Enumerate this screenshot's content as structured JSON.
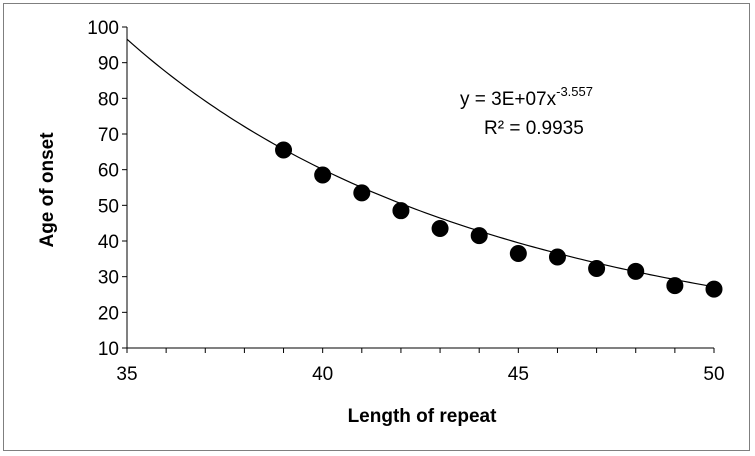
{
  "chart_data": {
    "type": "scatter",
    "title": "",
    "xlabel": "Length of repeat",
    "ylabel": "Age of onset",
    "xlim": [
      35,
      50
    ],
    "ylim": [
      10,
      100
    ],
    "x_ticks": [
      "35",
      "40",
      "45",
      "50"
    ],
    "y_ticks": [
      "10",
      "20",
      "30",
      "40",
      "50",
      "60",
      "70",
      "80",
      "90",
      "100"
    ],
    "grid": false,
    "legend": "none",
    "series": [
      {
        "x": [
          39,
          40,
          41,
          42,
          43,
          44,
          45,
          46,
          47,
          48,
          49,
          50
        ],
        "y": [
          65.5,
          58.5,
          53.5,
          48.5,
          43.5,
          41.5,
          36.5,
          35.5,
          32.3,
          31.5,
          27.5,
          26.5
        ],
        "marker_color": "#000000"
      }
    ],
    "trendline": {
      "type": "power",
      "coefficient": 30000000,
      "exponent": -3.557,
      "x_range": [
        35,
        50
      ],
      "equation_prefix": "y = 3E+07x",
      "equation_exponent": "-3.557",
      "r_squared": "R² = 0.9935"
    }
  }
}
